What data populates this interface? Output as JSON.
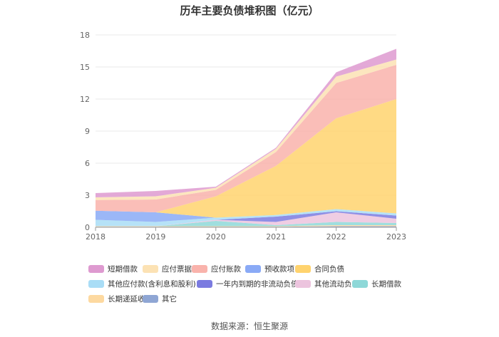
{
  "chart_data": {
    "type": "area",
    "title": "历年主要负债堆积图（亿元）",
    "x": [
      "2018",
      "2019",
      "2020",
      "2021",
      "2022",
      "2023"
    ],
    "ylim": [
      0,
      18
    ],
    "yticks": [
      "0",
      "3",
      "6",
      "9",
      "12",
      "15",
      "18"
    ],
    "stacked": true,
    "grid": true,
    "legend_position": "bottom",
    "series": [
      {
        "name": "其它",
        "color": "#8fa6d4",
        "values": [
          0.05,
          0.05,
          0.05,
          0.05,
          0.1,
          0.1
        ]
      },
      {
        "name": "长期递延收益",
        "color": "#fdd9a0",
        "values": [
          0.05,
          0.05,
          0.05,
          0.05,
          0.1,
          0.1
        ]
      },
      {
        "name": "长期借款",
        "color": "#8ed8d8",
        "values": [
          0.0,
          0.0,
          0.5,
          0.1,
          0.3,
          0.2
        ]
      },
      {
        "name": "其他流动负债",
        "color": "#ecc4de",
        "values": [
          0.0,
          0.0,
          0.1,
          0.3,
          0.9,
          0.4
        ]
      },
      {
        "name": "一年内到期的非流动负债",
        "color": "#7b7be0",
        "values": [
          0.0,
          0.0,
          0.0,
          0.5,
          0.1,
          0.3
        ]
      },
      {
        "name": "其他应付款(含利息和股利)",
        "color": "#a9ddf6",
        "values": [
          0.6,
          0.4,
          0.2,
          0.15,
          0.2,
          0.2
        ]
      },
      {
        "name": "预收款项",
        "color": "#8aaaf6",
        "values": [
          0.85,
          0.9,
          0.0,
          0.0,
          0.0,
          0.0
        ]
      },
      {
        "name": "合同负债",
        "color": "#ffd36e",
        "values": [
          0.0,
          0.0,
          2.0,
          4.6,
          8.5,
          10.7
        ]
      },
      {
        "name": "应付账款",
        "color": "#f9b3ac",
        "values": [
          1.0,
          1.2,
          0.6,
          1.3,
          3.3,
          3.2
        ]
      },
      {
        "name": "应付票据",
        "color": "#fce2b4",
        "values": [
          0.25,
          0.3,
          0.2,
          0.3,
          0.6,
          0.5
        ]
      },
      {
        "name": "短期借款",
        "color": "#de9ad0",
        "values": [
          0.4,
          0.5,
          0.1,
          0.1,
          0.4,
          1.0
        ]
      }
    ],
    "legend_order": [
      "短期借款",
      "应付票据",
      "应付账款",
      "预收款项",
      "合同负债",
      "其他应付款(含利息和股利)",
      "一年内到期的非流动负债",
      "其他流动负债",
      "长期借款",
      "长期递延收益",
      "其它"
    ]
  },
  "source_text": "数据来源：恒生聚源"
}
